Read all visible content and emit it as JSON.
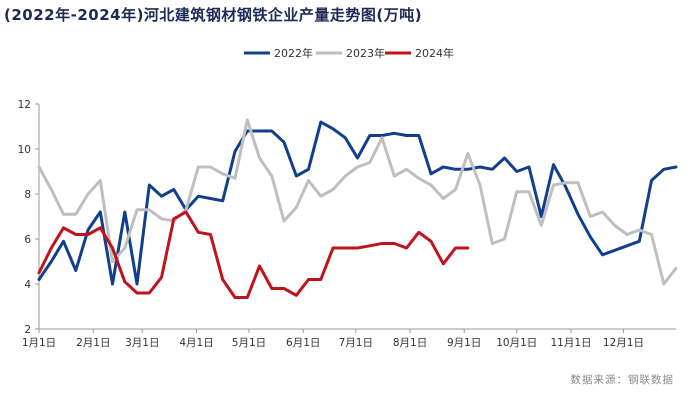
{
  "title": "(2022年-2024年)河北建筑钢材钢铁企业产量走势图(万吨)",
  "source": "数据来源：钢联数据",
  "chart_data": {
    "type": "line",
    "title": "(2022年-2024年)河北建筑钢材钢铁企业产量走势图(万吨)",
    "xlabel": "",
    "ylabel": "",
    "ylim": [
      2,
      12
    ],
    "yticks": [
      2,
      4,
      6,
      8,
      10,
      12
    ],
    "xlim": [
      1,
      53
    ],
    "x_tick_labels": [
      "1月1日",
      "2月1日",
      "3月1日",
      "4月1日",
      "5月1日",
      "6月1日",
      "7月1日",
      "8月1日",
      "9月1日",
      "10月1日",
      "11月1日",
      "12月1日"
    ],
    "x_tick_weeks": [
      1,
      5.43,
      9.43,
      13.86,
      18.14,
      22.57,
      26.86,
      31.29,
      35.71,
      40,
      44.43,
      48.71
    ],
    "grid": false,
    "legend_position": "top",
    "series": [
      {
        "name": "2022年",
        "color": "#123f8c",
        "x": [
          1,
          2,
          3,
          4,
          5,
          6,
          7,
          8,
          9,
          10,
          11,
          12,
          13,
          14,
          15,
          16,
          17,
          18,
          19,
          20,
          21,
          22,
          23,
          24,
          25,
          26,
          27,
          28,
          29,
          30,
          31,
          32,
          33,
          34,
          35,
          36,
          37,
          38,
          39,
          40,
          41,
          42,
          43,
          44,
          45,
          46,
          47,
          48,
          49,
          50,
          51,
          52,
          53
        ],
        "values": [
          4.2,
          5.0,
          5.9,
          4.6,
          6.4,
          7.2,
          4.0,
          7.2,
          4.0,
          8.4,
          7.9,
          8.2,
          7.3,
          7.9,
          7.8,
          7.7,
          9.9,
          10.8,
          10.8,
          10.8,
          10.3,
          8.8,
          9.1,
          11.2,
          10.9,
          10.5,
          9.6,
          10.6,
          10.6,
          10.7,
          10.6,
          10.6,
          8.9,
          9.2,
          9.1,
          9.1,
          9.2,
          9.1,
          9.6,
          9.0,
          9.2,
          7.0,
          9.3,
          8.3,
          7.1,
          6.1,
          5.3,
          5.5,
          5.7,
          5.9,
          8.6,
          9.1,
          9.2
        ]
      },
      {
        "name": "2023年",
        "color": "#bfbfbf",
        "x": [
          1,
          2,
          3,
          4,
          5,
          6,
          7,
          8,
          9,
          10,
          11,
          12,
          13,
          14,
          15,
          16,
          17,
          18,
          19,
          20,
          21,
          22,
          23,
          24,
          25,
          26,
          27,
          28,
          29,
          30,
          31,
          32,
          33,
          34,
          35,
          36,
          37,
          38,
          39,
          40,
          41,
          42,
          43,
          44,
          45,
          46,
          47,
          48,
          49,
          50,
          51,
          52,
          53
        ],
        "values": [
          9.2,
          8.2,
          7.1,
          7.1,
          8.0,
          8.6,
          5.0,
          5.6,
          7.3,
          7.3,
          6.9,
          6.8,
          7.3,
          9.2,
          9.2,
          8.9,
          8.7,
          11.3,
          9.6,
          8.8,
          6.8,
          7.4,
          8.6,
          7.9,
          8.2,
          8.8,
          9.2,
          9.4,
          10.5,
          8.8,
          9.1,
          8.7,
          8.4,
          7.8,
          8.2,
          9.8,
          8.4,
          5.8,
          6.0,
          8.1,
          8.1,
          6.6,
          8.4,
          8.5,
          8.5,
          7.0,
          7.2,
          6.6,
          6.2,
          6.4,
          6.2,
          4.0,
          4.7
        ]
      },
      {
        "name": "2024年",
        "color": "#c0141c",
        "x": [
          1,
          2,
          3,
          4,
          5,
          6,
          7,
          8,
          9,
          10,
          11,
          12,
          13,
          14,
          15,
          16,
          17,
          18,
          19,
          20,
          21,
          22,
          23,
          24,
          25,
          26,
          27,
          28,
          29,
          30,
          31,
          32,
          33,
          34,
          35,
          36
        ],
        "values": [
          4.5,
          5.6,
          6.5,
          6.2,
          6.2,
          6.5,
          5.6,
          4.1,
          3.6,
          3.6,
          4.3,
          6.9,
          7.2,
          6.3,
          6.2,
          4.2,
          3.4,
          3.4,
          4.8,
          3.8,
          3.8,
          3.5,
          4.2,
          4.2,
          5.6,
          5.6,
          5.6,
          5.7,
          5.8,
          5.8,
          5.6,
          6.3,
          5.9,
          4.9,
          5.6,
          5.6
        ]
      }
    ]
  }
}
